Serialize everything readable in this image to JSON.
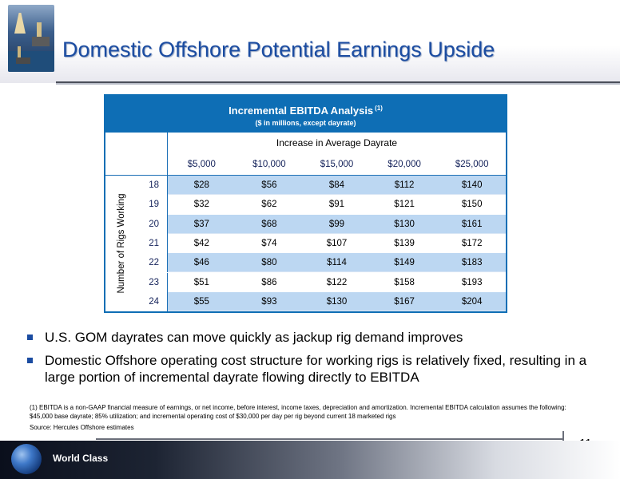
{
  "slide": {
    "title": "Domestic Offshore Potential Earnings Upside",
    "page_number": "11",
    "footer_text": "World Class"
  },
  "table": {
    "title": "Incremental EBITDA Analysis",
    "title_note": "(1)",
    "subtitle": "($ in millions, except dayrate)",
    "column_group_label": "Increase in Average Dayrate",
    "row_axis_label": "Number of Rigs Working",
    "columns": [
      "$5,000",
      "$10,000",
      "$15,000",
      "$20,000",
      "$25,000"
    ],
    "rows": [
      {
        "rigs": "18",
        "values": [
          "$28",
          "$56",
          "$84",
          "$112",
          "$140"
        ]
      },
      {
        "rigs": "19",
        "values": [
          "$32",
          "$62",
          "$91",
          "$121",
          "$150"
        ]
      },
      {
        "rigs": "20",
        "values": [
          "$37",
          "$68",
          "$99",
          "$130",
          "$161"
        ]
      },
      {
        "rigs": "21",
        "values": [
          "$42",
          "$74",
          "$107",
          "$139",
          "$172"
        ]
      },
      {
        "rigs": "22",
        "values": [
          "$46",
          "$80",
          "$114",
          "$149",
          "$183"
        ]
      },
      {
        "rigs": "23",
        "values": [
          "$51",
          "$86",
          "$122",
          "$158",
          "$193"
        ]
      },
      {
        "rigs": "24",
        "values": [
          "$55",
          "$93",
          "$130",
          "$167",
          "$204"
        ]
      }
    ]
  },
  "bullets": [
    "U.S. GOM dayrates can move quickly as jackup rig demand improves",
    "Domestic Offshore operating cost structure for working rigs is relatively fixed, resulting in a large portion of incremental dayrate flowing directly to EBITDA"
  ],
  "footnote": "(1)  EBITDA is a non-GAAP financial measure of earnings, or net income, before interest, income taxes, depreciation and amortization.  Incremental EBITDA calculation assumes the following: $45,000 base dayrate; 85% utilization; and incremental operating cost of $30,000 per day per rig beyond current 18 marketed rigs",
  "source": "Source: Hercules Offshore estimates",
  "colors": {
    "title_blue": "#1b4ca1",
    "table_header_blue": "#0e6eb5",
    "row_shade": "#bcd7f2"
  }
}
